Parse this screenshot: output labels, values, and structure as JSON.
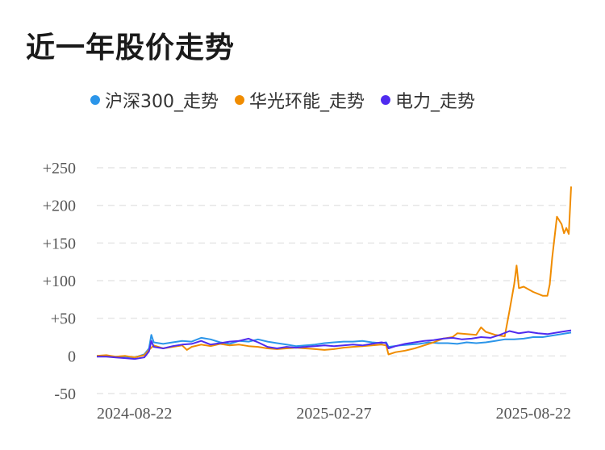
{
  "title": "近一年股价走势",
  "chart_data": {
    "type": "line",
    "title": "近一年股价走势",
    "xlabel": "",
    "ylabel": "",
    "x_tick_labels": [
      "2024-08-22",
      "2025-02-27",
      "2025-08-22"
    ],
    "y_ticks": [
      -50,
      0,
      50,
      100,
      150,
      200,
      250
    ],
    "y_tick_labels": [
      "-50",
      "0",
      "+50",
      "+100",
      "+150",
      "+200",
      "+250"
    ],
    "ylim": [
      -50,
      250
    ],
    "xlim": [
      0,
      100
    ],
    "grid": true,
    "legend_position": "top",
    "series": [
      {
        "name": "沪深300_走势",
        "color": "#2b95e9",
        "points": [
          [
            0,
            0
          ],
          [
            3,
            -1
          ],
          [
            6,
            -1
          ],
          [
            8,
            -2
          ],
          [
            10,
            2
          ],
          [
            11,
            10
          ],
          [
            11.5,
            28
          ],
          [
            12,
            18
          ],
          [
            14,
            16
          ],
          [
            16,
            18
          ],
          [
            18,
            20
          ],
          [
            20,
            19
          ],
          [
            22,
            24
          ],
          [
            24,
            22
          ],
          [
            26,
            18
          ],
          [
            28,
            16
          ],
          [
            30,
            20
          ],
          [
            32,
            19
          ],
          [
            34,
            22
          ],
          [
            36,
            19
          ],
          [
            38,
            17
          ],
          [
            40,
            15
          ],
          [
            42,
            13
          ],
          [
            44,
            14
          ],
          [
            46,
            15
          ],
          [
            48,
            17
          ],
          [
            50,
            18
          ],
          [
            52,
            19
          ],
          [
            54,
            19
          ],
          [
            56,
            20
          ],
          [
            58,
            18
          ],
          [
            60,
            17
          ],
          [
            61,
            18
          ],
          [
            61.5,
            12
          ],
          [
            64,
            14
          ],
          [
            66,
            15
          ],
          [
            68,
            16
          ],
          [
            70,
            18
          ],
          [
            72,
            17
          ],
          [
            74,
            17
          ],
          [
            76,
            16
          ],
          [
            78,
            18
          ],
          [
            80,
            17
          ],
          [
            82,
            18
          ],
          [
            84,
            20
          ],
          [
            86,
            22
          ],
          [
            88,
            22
          ],
          [
            90,
            23
          ],
          [
            92,
            25
          ],
          [
            94,
            25
          ],
          [
            96,
            27
          ],
          [
            98,
            29
          ],
          [
            100,
            31
          ]
        ]
      },
      {
        "name": "华光环能_走势",
        "color": "#f08c00",
        "points": [
          [
            0,
            0
          ],
          [
            2,
            1
          ],
          [
            4,
            -1
          ],
          [
            6,
            0
          ],
          [
            8,
            -2
          ],
          [
            10,
            1
          ],
          [
            11,
            8
          ],
          [
            12,
            14
          ],
          [
            14,
            10
          ],
          [
            16,
            12
          ],
          [
            18,
            14
          ],
          [
            19,
            8
          ],
          [
            20,
            12
          ],
          [
            22,
            15
          ],
          [
            24,
            13
          ],
          [
            26,
            16
          ],
          [
            28,
            14
          ],
          [
            30,
            15
          ],
          [
            32,
            13
          ],
          [
            34,
            12
          ],
          [
            36,
            10
          ],
          [
            38,
            9
          ],
          [
            40,
            10
          ],
          [
            42,
            11
          ],
          [
            44,
            10
          ],
          [
            46,
            9
          ],
          [
            48,
            8
          ],
          [
            50,
            9
          ],
          [
            52,
            11
          ],
          [
            54,
            12
          ],
          [
            56,
            13
          ],
          [
            58,
            14
          ],
          [
            60,
            15
          ],
          [
            61,
            14
          ],
          [
            61.5,
            2
          ],
          [
            63,
            5
          ],
          [
            65,
            7
          ],
          [
            67,
            10
          ],
          [
            69,
            14
          ],
          [
            71,
            18
          ],
          [
            73,
            23
          ],
          [
            75,
            25
          ],
          [
            76,
            30
          ],
          [
            78,
            29
          ],
          [
            80,
            28
          ],
          [
            81,
            38
          ],
          [
            82,
            32
          ],
          [
            84,
            28
          ],
          [
            86,
            26
          ],
          [
            87,
            60
          ],
          [
            88,
            95
          ],
          [
            88.5,
            120
          ],
          [
            89,
            90
          ],
          [
            90,
            92
          ],
          [
            92,
            85
          ],
          [
            94,
            80
          ],
          [
            95,
            80
          ],
          [
            95.5,
            95
          ],
          [
            96,
            130
          ],
          [
            97,
            185
          ],
          [
            98,
            175
          ],
          [
            98.5,
            163
          ],
          [
            99,
            170
          ],
          [
            99.5,
            162
          ],
          [
            100,
            225
          ]
        ]
      },
      {
        "name": "电力_走势",
        "color": "#4f2bef",
        "points": [
          [
            0,
            -1
          ],
          [
            2,
            -1
          ],
          [
            4,
            -2
          ],
          [
            6,
            -3
          ],
          [
            8,
            -4
          ],
          [
            10,
            -2
          ],
          [
            11,
            6
          ],
          [
            11.5,
            20
          ],
          [
            12,
            12
          ],
          [
            14,
            10
          ],
          [
            16,
            13
          ],
          [
            18,
            15
          ],
          [
            20,
            16
          ],
          [
            22,
            20
          ],
          [
            24,
            15
          ],
          [
            26,
            17
          ],
          [
            28,
            19
          ],
          [
            30,
            20
          ],
          [
            32,
            23
          ],
          [
            34,
            18
          ],
          [
            36,
            12
          ],
          [
            38,
            10
          ],
          [
            40,
            12
          ],
          [
            42,
            11
          ],
          [
            44,
            12
          ],
          [
            46,
            13
          ],
          [
            48,
            14
          ],
          [
            50,
            13
          ],
          [
            52,
            14
          ],
          [
            54,
            15
          ],
          [
            56,
            14
          ],
          [
            58,
            16
          ],
          [
            60,
            18
          ],
          [
            61,
            17
          ],
          [
            61.5,
            10
          ],
          [
            63,
            13
          ],
          [
            65,
            16
          ],
          [
            67,
            18
          ],
          [
            69,
            20
          ],
          [
            71,
            21
          ],
          [
            73,
            23
          ],
          [
            75,
            24
          ],
          [
            77,
            22
          ],
          [
            79,
            23
          ],
          [
            81,
            25
          ],
          [
            83,
            24
          ],
          [
            85,
            28
          ],
          [
            87,
            33
          ],
          [
            89,
            30
          ],
          [
            91,
            32
          ],
          [
            93,
            30
          ],
          [
            95,
            29
          ],
          [
            97,
            31
          ],
          [
            99,
            33
          ],
          [
            100,
            34
          ]
        ]
      }
    ]
  }
}
